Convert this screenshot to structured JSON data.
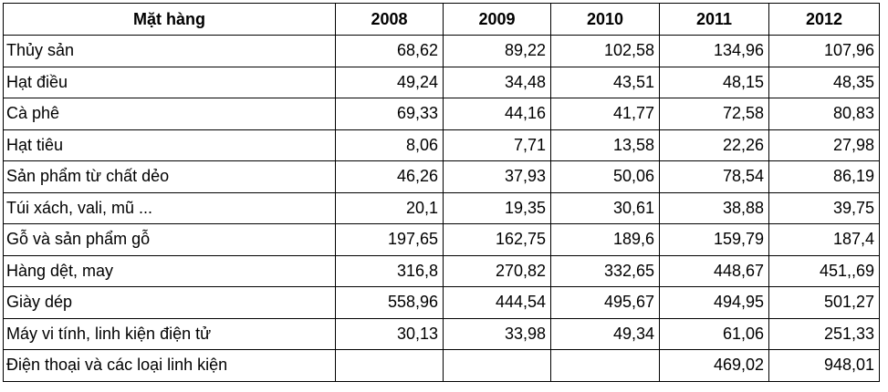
{
  "table": {
    "header": [
      "Mặt hàng",
      "2008",
      "2009",
      "2010",
      "2011",
      "2012"
    ],
    "rows": [
      [
        "Thủy sản",
        "68,62",
        "89,22",
        "102,58",
        "134,96",
        "107,96"
      ],
      [
        "Hạt điều",
        "49,24",
        "34,48",
        "43,51",
        "48,15",
        "48,35"
      ],
      [
        "Cà phê",
        "69,33",
        "44,16",
        "41,77",
        "72,58",
        "80,83"
      ],
      [
        "Hạt tiêu",
        "8,06",
        "7,71",
        "13,58",
        "22,26",
        "27,98"
      ],
      [
        "Sản phẩm từ chất dẻo",
        "46,26",
        "37,93",
        "50,06",
        "78,54",
        "86,19"
      ],
      [
        "Túi xách, vali, mũ ...",
        "20,1",
        "19,35",
        "30,61",
        "38,88",
        "39,75"
      ],
      [
        "Gỗ và sản phẩm gỗ",
        "197,65",
        "162,75",
        "189,6",
        "159,79",
        "187,4"
      ],
      [
        "Hàng dệt, may",
        "316,8",
        "270,82",
        "332,65",
        "448,67",
        "451,,69"
      ],
      [
        "Giày dép",
        "558,96",
        "444,54",
        "495,67",
        "494,95",
        "501,27"
      ],
      [
        "Máy vi tính, linh kiện điện tử",
        "30,13",
        "33,98",
        "49,34",
        "61,06",
        "251,33"
      ],
      [
        "Điện thoại và các loại linh kiện",
        null,
        null,
        null,
        "469,02",
        "948,01"
      ]
    ]
  }
}
